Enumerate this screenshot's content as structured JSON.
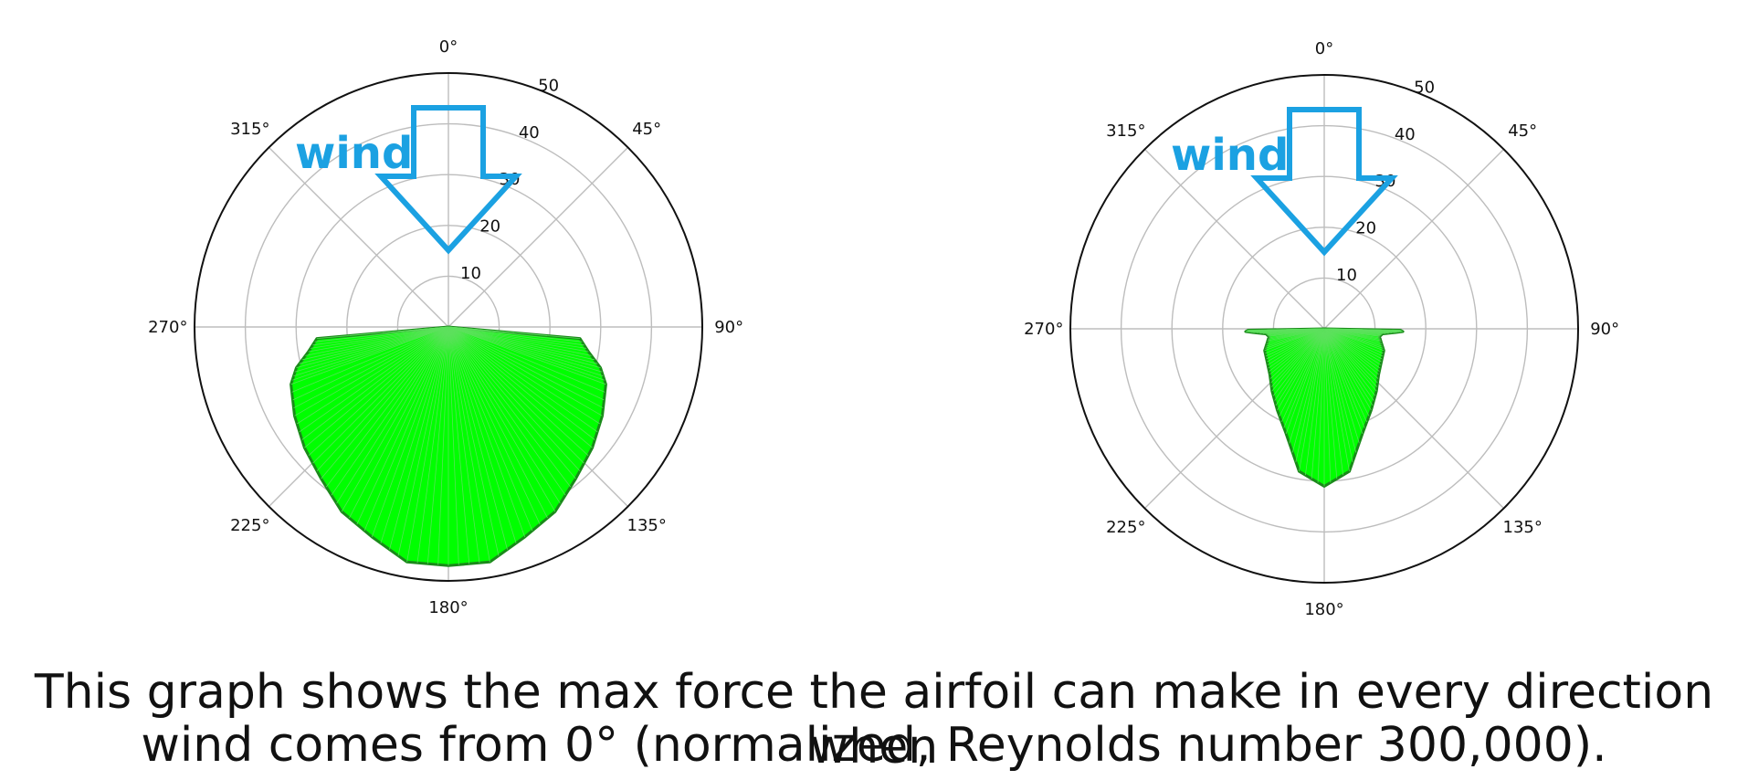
{
  "caption": {
    "line1": "This graph shows the max force the airfoil can make in every direction when",
    "line2": "wind comes from 0° (normalized, Reynolds number 300,000)."
  },
  "colors": {
    "fill": "#00ff00",
    "outline": "#1a8a1a",
    "grid": "#bdbdbd",
    "frame": "#111111",
    "wind": "#1ba1e2"
  },
  "chart_data": [
    {
      "type": "polar",
      "direction": "clockwise",
      "zero_location": "top",
      "rlim": [
        0,
        50
      ],
      "radial_ticks": [
        "10",
        "20",
        "30",
        "40",
        "50"
      ],
      "angle_ticks": [
        "0°",
        "45°",
        "90°",
        "135°",
        "180°",
        "225°",
        "270°",
        "315°"
      ],
      "grid": true,
      "annotation": {
        "text": "wind",
        "arrow_direction": "down",
        "icon": "down-arrow-icon"
      },
      "series": [
        {
          "theta": [
            90,
            95,
            100,
            105,
            110,
            120,
            130,
            140,
            150,
            160,
            170,
            180,
            190,
            200,
            210,
            220,
            230,
            240,
            250,
            255,
            260,
            265,
            270
          ],
          "r": [
            0,
            26,
            28,
            31,
            33,
            35,
            37,
            39,
            42,
            44,
            47,
            47,
            47,
            44,
            42,
            39,
            37,
            35,
            33,
            31,
            28,
            26,
            0
          ]
        }
      ]
    },
    {
      "type": "polar",
      "direction": "clockwise",
      "zero_location": "top",
      "rlim": [
        0,
        50
      ],
      "radial_ticks": [
        "10",
        "20",
        "30",
        "40",
        "50"
      ],
      "angle_ticks": [
        "0°",
        "45°",
        "90°",
        "135°",
        "180°",
        "225°",
        "270°",
        "315°"
      ],
      "grid": true,
      "annotation": {
        "text": "wind",
        "arrow_direction": "down",
        "icon": "down-arrow-icon"
      },
      "series": [
        {
          "theta": [
            90,
            91,
            92,
            93,
            95,
            98,
            103,
            110,
            120,
            130,
            140,
            150,
            160,
            170,
            180,
            190,
            200,
            210,
            220,
            230,
            240,
            250,
            257,
            262,
            265,
            267,
            268,
            269,
            270
          ],
          "r": [
            0,
            15,
            15.5,
            14,
            11.5,
            11,
            11.5,
            12.5,
            13,
            14,
            16,
            18.5,
            22,
            28.5,
            31,
            28.5,
            22,
            18.5,
            16,
            14,
            13,
            12.5,
            11.5,
            11,
            11.5,
            14,
            15.5,
            15,
            0
          ]
        }
      ]
    }
  ]
}
